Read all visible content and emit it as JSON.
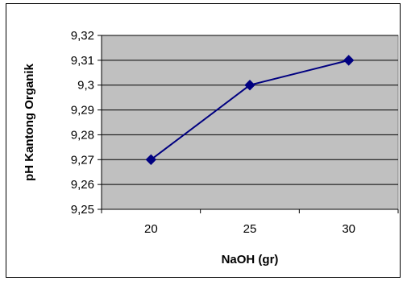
{
  "chart_data": {
    "type": "line",
    "title": "",
    "xlabel": "NaOH (gr)",
    "ylabel": "pH Kantong Organik",
    "categories": [
      "20",
      "25",
      "30"
    ],
    "series": [
      {
        "values": [
          9.27,
          9.3,
          9.31
        ]
      }
    ],
    "ylim": [
      9.25,
      9.32
    ],
    "y_ticks": [
      "9,25",
      "9,26",
      "9,27",
      "9,28",
      "9,29",
      "9,3",
      "9,31",
      "9,32"
    ],
    "grid": true,
    "legend": "none",
    "plot_background": "#c0c0c0",
    "line_color": "#000080",
    "marker": "diamond"
  }
}
